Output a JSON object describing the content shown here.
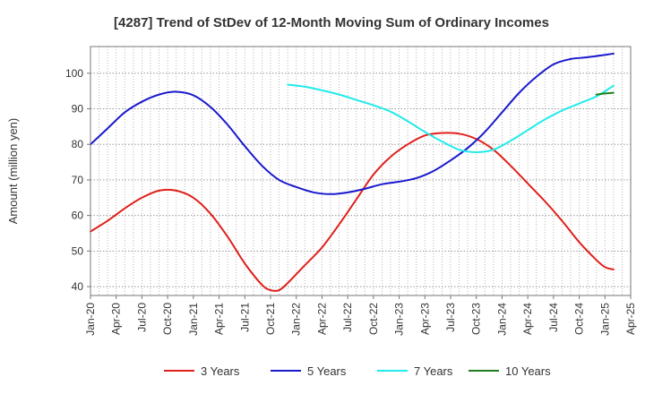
{
  "chart_data": {
    "type": "line",
    "title": "[4287]  Trend of StDev of 12-Month Moving Sum of Ordinary Incomes",
    "xlabel": "",
    "ylabel": "Amount (million yen)",
    "ylim": [
      37.5,
      107.5
    ],
    "yticks": [
      40,
      50,
      60,
      70,
      80,
      90,
      100
    ],
    "xlim": [
      "2020-01",
      "2025-04"
    ],
    "xticks": [
      "Jan-20",
      "Apr-20",
      "Jul-20",
      "Oct-20",
      "Jan-21",
      "Apr-21",
      "Jul-21",
      "Oct-21",
      "Jan-22",
      "Apr-22",
      "Jul-22",
      "Oct-22",
      "Jan-23",
      "Apr-23",
      "Jul-23",
      "Oct-23",
      "Jan-24",
      "Apr-24",
      "Jul-24",
      "Oct-24",
      "Jan-25",
      "Apr-25"
    ],
    "grid": true,
    "legend_position": "bottom",
    "series": [
      {
        "name": "3 Years",
        "color": "#e0201b",
        "points": [
          [
            "2020-01",
            55.5
          ],
          [
            "2020-03",
            58.5
          ],
          [
            "2020-05",
            62.0
          ],
          [
            "2020-07",
            65.0
          ],
          [
            "2020-09",
            67.0
          ],
          [
            "2020-11",
            67.0
          ],
          [
            "2021-01",
            65.0
          ],
          [
            "2021-03",
            60.5
          ],
          [
            "2021-05",
            54.0
          ],
          [
            "2021-07",
            46.5
          ],
          [
            "2021-09",
            40.5
          ],
          [
            "2021-10",
            39.0
          ],
          [
            "2021-11",
            39.0
          ],
          [
            "2021-12",
            41.0
          ],
          [
            "2022-02",
            46.0
          ],
          [
            "2022-04",
            51.0
          ],
          [
            "2022-06",
            57.5
          ],
          [
            "2022-08",
            64.5
          ],
          [
            "2022-10",
            71.5
          ],
          [
            "2022-12",
            76.5
          ],
          [
            "2023-02",
            80.0
          ],
          [
            "2023-04",
            82.5
          ],
          [
            "2023-06",
            83.2
          ],
          [
            "2023-08",
            83.0
          ],
          [
            "2023-10",
            81.5
          ],
          [
            "2023-12",
            78.5
          ],
          [
            "2024-02",
            74.0
          ],
          [
            "2024-04",
            69.0
          ],
          [
            "2024-06",
            64.0
          ],
          [
            "2024-08",
            58.5
          ],
          [
            "2024-10",
            52.5
          ],
          [
            "2024-12",
            47.5
          ],
          [
            "2025-01",
            45.5
          ],
          [
            "2025-02",
            44.8
          ]
        ]
      },
      {
        "name": "5 Years",
        "color": "#1a1acd",
        "points": [
          [
            "2020-01",
            80.0
          ],
          [
            "2020-03",
            84.5
          ],
          [
            "2020-05",
            89.0
          ],
          [
            "2020-07",
            92.0
          ],
          [
            "2020-09",
            94.0
          ],
          [
            "2020-11",
            94.8
          ],
          [
            "2021-01",
            93.8
          ],
          [
            "2021-03",
            90.5
          ],
          [
            "2021-05",
            85.5
          ],
          [
            "2021-07",
            79.5
          ],
          [
            "2021-09",
            74.0
          ],
          [
            "2021-11",
            70.0
          ],
          [
            "2022-01",
            68.0
          ],
          [
            "2022-03",
            66.5
          ],
          [
            "2022-05",
            66.0
          ],
          [
            "2022-07",
            66.5
          ],
          [
            "2022-09",
            67.5
          ],
          [
            "2022-11",
            68.8
          ],
          [
            "2023-01",
            69.5
          ],
          [
            "2023-03",
            70.5
          ],
          [
            "2023-05",
            72.5
          ],
          [
            "2023-07",
            75.5
          ],
          [
            "2023-09",
            79.0
          ],
          [
            "2023-11",
            83.5
          ],
          [
            "2024-01",
            89.0
          ],
          [
            "2024-03",
            94.5
          ],
          [
            "2024-05",
            99.0
          ],
          [
            "2024-07",
            102.5
          ],
          [
            "2024-09",
            104.0
          ],
          [
            "2024-11",
            104.5
          ],
          [
            "2025-02",
            105.5
          ]
        ]
      },
      {
        "name": "7 Years",
        "color": "#22eaea",
        "points": [
          [
            "2021-12",
            96.8
          ],
          [
            "2022-02",
            96.2
          ],
          [
            "2022-04",
            95.2
          ],
          [
            "2022-06",
            94.0
          ],
          [
            "2022-08",
            92.5
          ],
          [
            "2022-10",
            91.0
          ],
          [
            "2022-12",
            89.2
          ],
          [
            "2023-02",
            86.5
          ],
          [
            "2023-04",
            83.5
          ],
          [
            "2023-06",
            80.8
          ],
          [
            "2023-08",
            78.5
          ],
          [
            "2023-10",
            77.8
          ],
          [
            "2023-12",
            78.5
          ],
          [
            "2024-02",
            81.0
          ],
          [
            "2024-04",
            84.0
          ],
          [
            "2024-06",
            87.0
          ],
          [
            "2024-08",
            89.5
          ],
          [
            "2024-10",
            91.5
          ],
          [
            "2024-12",
            93.5
          ],
          [
            "2025-02",
            96.5
          ]
        ]
      },
      {
        "name": "10 Years",
        "color": "#1f7f1f",
        "points": [
          [
            "2024-12",
            94.0
          ],
          [
            "2025-01",
            94.3
          ],
          [
            "2025-02",
            94.5
          ]
        ]
      }
    ]
  }
}
